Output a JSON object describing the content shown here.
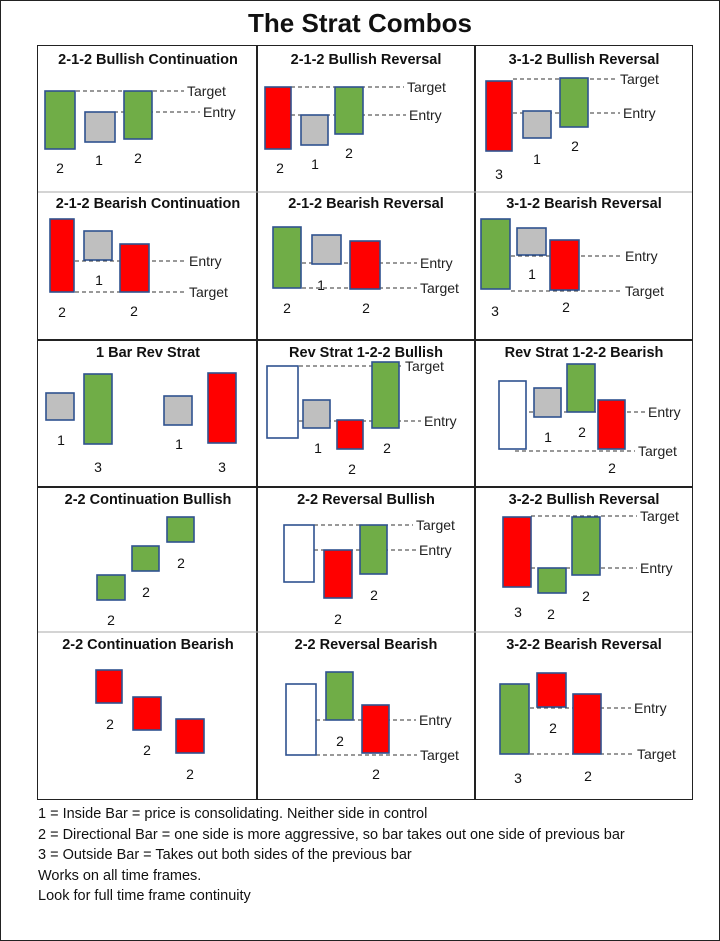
{
  "title": "The Strat Combos",
  "colors": {
    "bull": "#70AD47",
    "bear": "#FF0000",
    "inside": "#BFBFBF",
    "outline": "#2F528F",
    "line": "#333333"
  },
  "labels": {
    "target": "Target",
    "entry": "Entry"
  },
  "cards": [
    {
      "title": "2-1-2 Bullish Continuation",
      "bars": [
        "bull",
        "inside",
        "bull"
      ],
      "numbers": [
        "2",
        "1",
        "2"
      ]
    },
    {
      "title": "2-1-2 Bullish Reversal",
      "bars": [
        "bear",
        "inside",
        "bull"
      ],
      "numbers": [
        "2",
        "1",
        "2"
      ]
    },
    {
      "title": "3-1-2 Bullish Reversal",
      "bars": [
        "bear",
        "inside",
        "bull"
      ],
      "numbers": [
        "3",
        "1",
        "2"
      ]
    },
    {
      "title": "2-1-2 Bearish Continuation",
      "bars": [
        "bear",
        "inside",
        "bear"
      ],
      "numbers": [
        "2",
        "1",
        "2"
      ]
    },
    {
      "title": "2-1-2 Bearish Reversal",
      "bars": [
        "bull",
        "inside",
        "bear"
      ],
      "numbers": [
        "2",
        "1",
        "2"
      ]
    },
    {
      "title": "3-1-2 Bearish Reversal",
      "bars": [
        "bull",
        "inside",
        "bear"
      ],
      "numbers": [
        "3",
        "1",
        "2"
      ]
    },
    {
      "title": "1 Bar Rev Strat",
      "bars": [
        "inside",
        "bull",
        "inside",
        "bear"
      ],
      "numbers": [
        "1",
        "3",
        "1",
        "3"
      ]
    },
    {
      "title": "Rev Strat 1-2-2 Bullish",
      "bars": [
        "hollow",
        "inside",
        "bear",
        "bull"
      ],
      "numbers": [
        "1",
        "2",
        "2"
      ]
    },
    {
      "title": "Rev Strat 1-2-2 Bearish",
      "bars": [
        "hollow",
        "inside",
        "bull",
        "bear"
      ],
      "numbers": [
        "1",
        "2",
        "2"
      ]
    },
    {
      "title": "2-2 Continuation Bullish",
      "bars": [
        "bull",
        "bull",
        "bull"
      ],
      "numbers": [
        "2",
        "2",
        "2"
      ]
    },
    {
      "title": "2-2 Reversal Bullish",
      "bars": [
        "hollow",
        "bear",
        "bull"
      ],
      "numbers": [
        "2",
        "2"
      ]
    },
    {
      "title": "3-2-2 Bullish Reversal",
      "bars": [
        "bear",
        "bull",
        "bull"
      ],
      "numbers": [
        "3",
        "2",
        "2"
      ]
    },
    {
      "title": "2-2 Continuation Bearish",
      "bars": [
        "bear",
        "bear",
        "bear"
      ],
      "numbers": [
        "2",
        "2",
        "2"
      ]
    },
    {
      "title": "2-2 Reversal Bearish",
      "bars": [
        "hollow",
        "bull",
        "bear"
      ],
      "numbers": [
        "2",
        "2"
      ]
    },
    {
      "title": "3-2-2 Bearish Reversal",
      "bars": [
        "bull",
        "bear",
        "bear"
      ],
      "numbers": [
        "3",
        "2",
        "2"
      ]
    }
  ],
  "legend": [
    "1 = Inside Bar = price is consolidating. Neither side in control",
    "2 = Directional Bar = one side is more aggressive, so bar takes out one side of previous bar",
    "3 = Outside Bar = Takes out both sides of the previous bar",
    "Works on all time frames.",
    "Look for full time frame continuity"
  ]
}
